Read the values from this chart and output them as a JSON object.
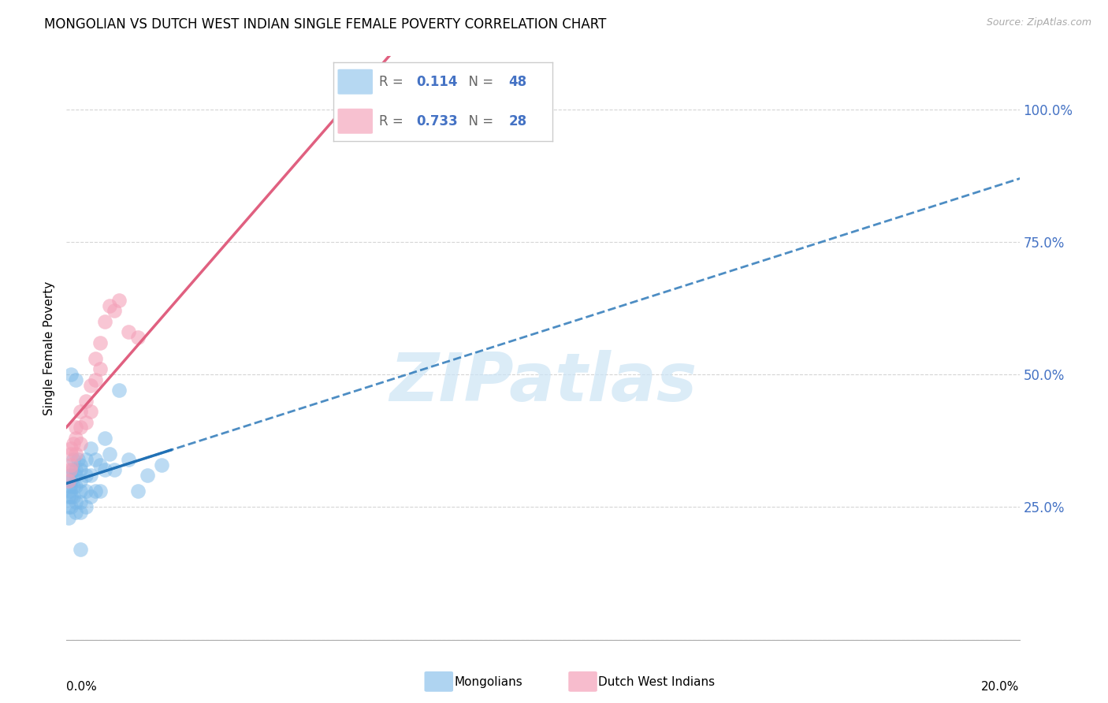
{
  "title": "MONGOLIAN VS DUTCH WEST INDIAN SINGLE FEMALE POVERTY CORRELATION CHART",
  "source": "Source: ZipAtlas.com",
  "ylabel": "Single Female Poverty",
  "mongolian_R": "0.114",
  "mongolian_N": "48",
  "dutch_R": "0.733",
  "dutch_N": "28",
  "mongolian_color": "#7ab8e8",
  "dutch_color": "#f4a0b8",
  "mongolian_line_color": "#2171b5",
  "dutch_line_color": "#e06080",
  "mongolian_x": [
    0.0005,
    0.0005,
    0.0005,
    0.0007,
    0.0008,
    0.001,
    0.001,
    0.001,
    0.001,
    0.0012,
    0.0015,
    0.0015,
    0.0015,
    0.002,
    0.002,
    0.002,
    0.002,
    0.002,
    0.0025,
    0.003,
    0.003,
    0.003,
    0.003,
    0.003,
    0.003,
    0.004,
    0.004,
    0.004,
    0.004,
    0.005,
    0.005,
    0.005,
    0.006,
    0.006,
    0.007,
    0.007,
    0.008,
    0.008,
    0.009,
    0.01,
    0.011,
    0.013,
    0.015,
    0.017,
    0.02,
    0.003,
    0.002,
    0.001
  ],
  "mongolian_y": [
    0.27,
    0.25,
    0.23,
    0.29,
    0.28,
    0.31,
    0.3,
    0.27,
    0.25,
    0.32,
    0.34,
    0.29,
    0.27,
    0.32,
    0.31,
    0.29,
    0.26,
    0.24,
    0.34,
    0.33,
    0.32,
    0.3,
    0.28,
    0.26,
    0.24,
    0.34,
    0.31,
    0.28,
    0.25,
    0.36,
    0.31,
    0.27,
    0.34,
    0.28,
    0.33,
    0.28,
    0.38,
    0.32,
    0.35,
    0.32,
    0.47,
    0.34,
    0.28,
    0.31,
    0.33,
    0.17,
    0.49,
    0.5
  ],
  "dutch_x": [
    0.0005,
    0.0007,
    0.001,
    0.001,
    0.001,
    0.0015,
    0.002,
    0.002,
    0.002,
    0.003,
    0.003,
    0.003,
    0.004,
    0.004,
    0.005,
    0.005,
    0.006,
    0.006,
    0.007,
    0.007,
    0.008,
    0.009,
    0.01,
    0.011,
    0.013,
    0.015,
    0.06,
    0.065
  ],
  "dutch_y": [
    0.3,
    0.32,
    0.36,
    0.35,
    0.33,
    0.37,
    0.4,
    0.38,
    0.35,
    0.43,
    0.4,
    0.37,
    0.45,
    0.41,
    0.48,
    0.43,
    0.53,
    0.49,
    0.56,
    0.51,
    0.6,
    0.63,
    0.62,
    0.64,
    0.58,
    0.57,
    1.0,
    1.0
  ],
  "xlim": [
    0.0,
    0.2
  ],
  "ylim": [
    0.0,
    1.1
  ],
  "yticks": [
    0.0,
    0.25,
    0.5,
    0.75,
    1.0
  ],
  "ytick_labels": [
    "",
    "25.0%",
    "50.0%",
    "75.0%",
    "100.0%"
  ],
  "grid_color": "#d5d5d5",
  "background_color": "#ffffff",
  "title_fontsize": 12,
  "watermark_text": "ZIPatlas",
  "watermark_color": "#cce4f5"
}
